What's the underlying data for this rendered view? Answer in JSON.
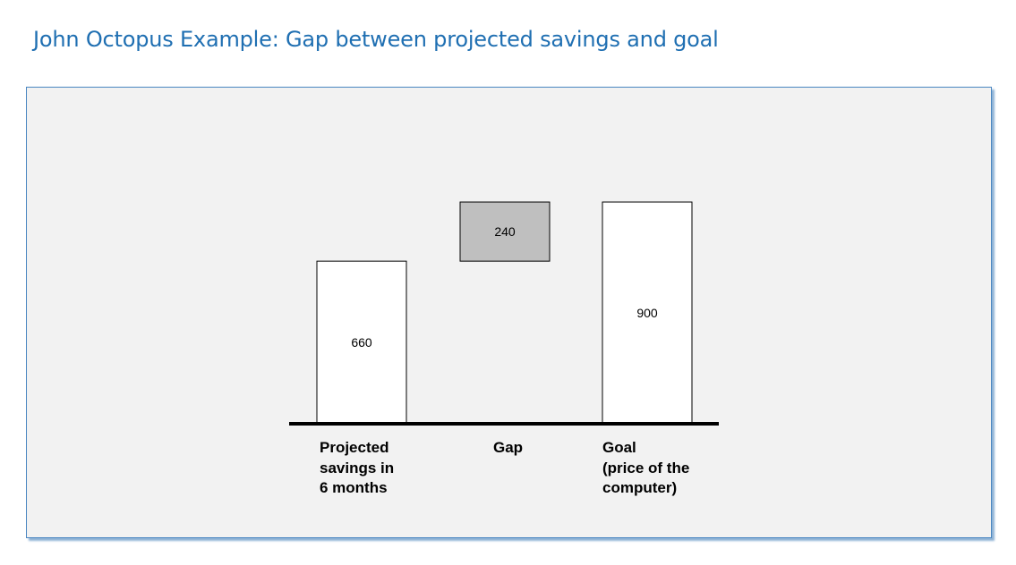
{
  "title": "John Octopus Example: Gap between projected savings and goal",
  "chart_data": {
    "type": "bar",
    "subtype": "waterfall",
    "categories": [
      "Projected\nsavings in\n6 months",
      "Gap",
      "Goal\n(price of the\ncomputer)"
    ],
    "values": [
      660,
      240,
      900
    ],
    "value_labels": [
      "660",
      "240",
      "900"
    ],
    "bar_base": [
      0,
      660,
      0
    ],
    "ylim": [
      0,
      900
    ],
    "grid": false,
    "legend": "none",
    "colors": {
      "bar_fill": "#ffffff",
      "gap_fill": "#bfbfbf",
      "bar_stroke": "#000000",
      "axis": "#000000"
    }
  }
}
